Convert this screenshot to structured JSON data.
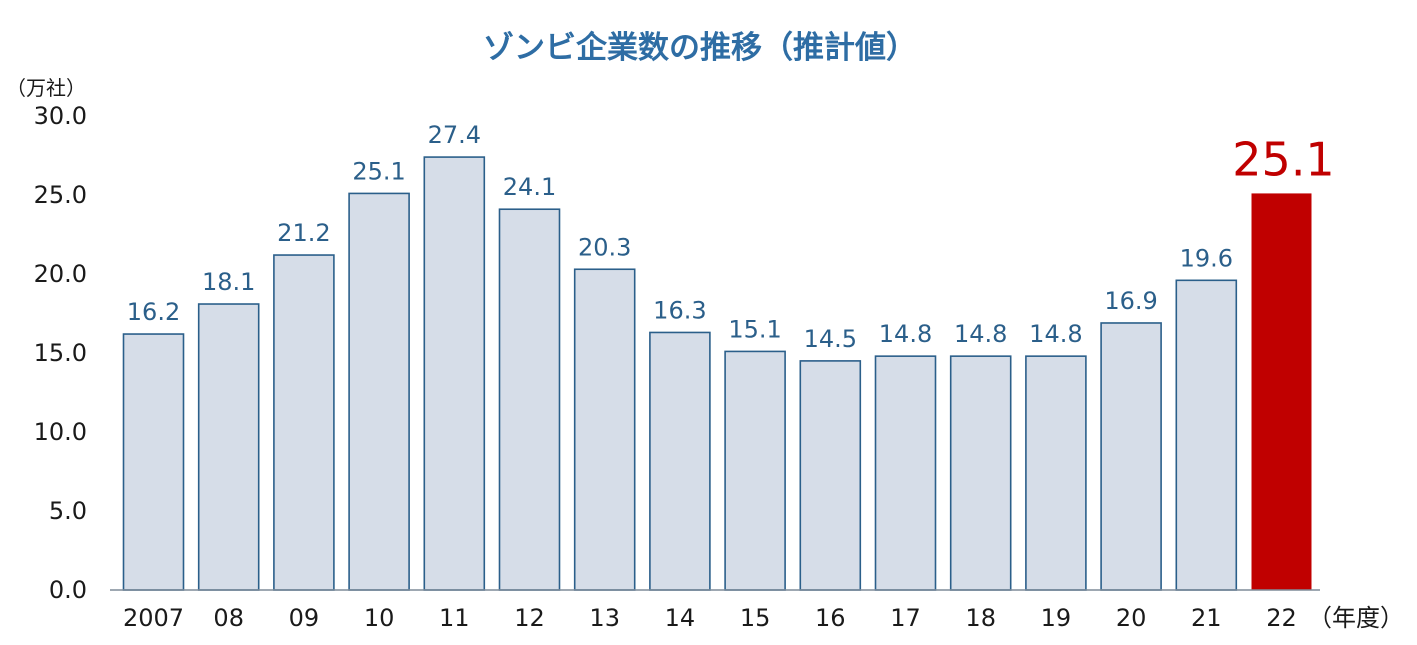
{
  "chart_data": {
    "type": "bar",
    "title": "ゾンビ企業数の推移（推計値）",
    "ylabel": "（万社）",
    "xlabel": "（年度）",
    "ylim": [
      0,
      30
    ],
    "yticks": [
      "0.0",
      "5.0",
      "10.0",
      "15.0",
      "20.0",
      "25.0",
      "30.0"
    ],
    "grid": false,
    "categories": [
      "2007",
      "08",
      "09",
      "10",
      "11",
      "12",
      "13",
      "14",
      "15",
      "16",
      "17",
      "18",
      "19",
      "20",
      "21",
      "22"
    ],
    "values": [
      16.2,
      18.1,
      21.2,
      25.1,
      27.4,
      24.1,
      20.3,
      16.3,
      15.1,
      14.5,
      14.8,
      14.8,
      14.8,
      16.9,
      19.6,
      25.1
    ],
    "value_labels": [
      "16.2",
      "18.1",
      "21.2",
      "25.1",
      "27.4",
      "24.1",
      "20.3",
      "16.3",
      "15.1",
      "14.5",
      "14.8",
      "14.8",
      "14.8",
      "16.9",
      "19.6",
      "25.1"
    ],
    "highlight_index": 15,
    "colors": {
      "bar_fill": "#d6dde8",
      "bar_stroke": "#2b5f8a",
      "highlight_fill": "#c00000",
      "label": "#2b5f8a",
      "highlight_label": "#c00000",
      "title": "#2e6da4",
      "axis": "#7f8c99"
    }
  }
}
